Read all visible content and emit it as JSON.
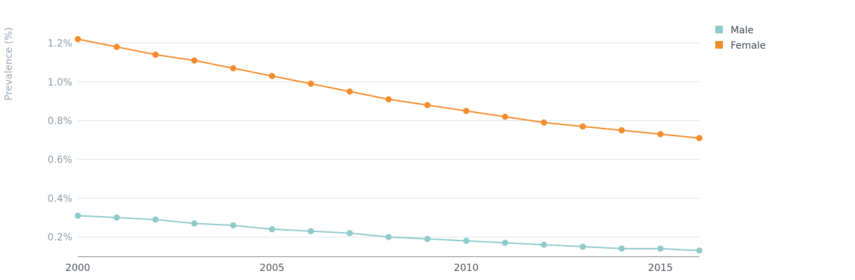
{
  "colors": {
    "male": "#8ecaca",
    "female": "#f28c2a",
    "grid": "#dde3ea",
    "axis": "#7f8a96"
  },
  "chart_data": {
    "type": "line",
    "title": "",
    "xlabel": "",
    "ylabel": "Prevalence (%)",
    "x": [
      2000,
      2001,
      2002,
      2003,
      2004,
      2005,
      2006,
      2007,
      2008,
      2009,
      2010,
      2011,
      2012,
      2013,
      2014,
      2015,
      2016
    ],
    "x_ticks": [
      "2000",
      "2005",
      "2010",
      "2015"
    ],
    "y_ticks": [
      "0.2%",
      "0.4%",
      "0.6%",
      "0.8%",
      "1.0%",
      "1.2%"
    ],
    "xlim": [
      2000,
      2016
    ],
    "ylim": [
      0.1,
      1.3
    ],
    "grid": true,
    "legend": "top-right",
    "series": [
      {
        "name": "Male",
        "color": "#8ecaca",
        "values": [
          0.31,
          0.3,
          0.29,
          0.27,
          0.26,
          0.24,
          0.23,
          0.22,
          0.2,
          0.19,
          0.18,
          0.17,
          0.16,
          0.15,
          0.14,
          0.14,
          0.13
        ]
      },
      {
        "name": "Female",
        "color": "#f28c2a",
        "values": [
          1.22,
          1.18,
          1.14,
          1.11,
          1.07,
          1.03,
          0.99,
          0.95,
          0.91,
          0.88,
          0.85,
          0.82,
          0.79,
          0.77,
          0.75,
          0.73,
          0.71
        ]
      }
    ]
  }
}
